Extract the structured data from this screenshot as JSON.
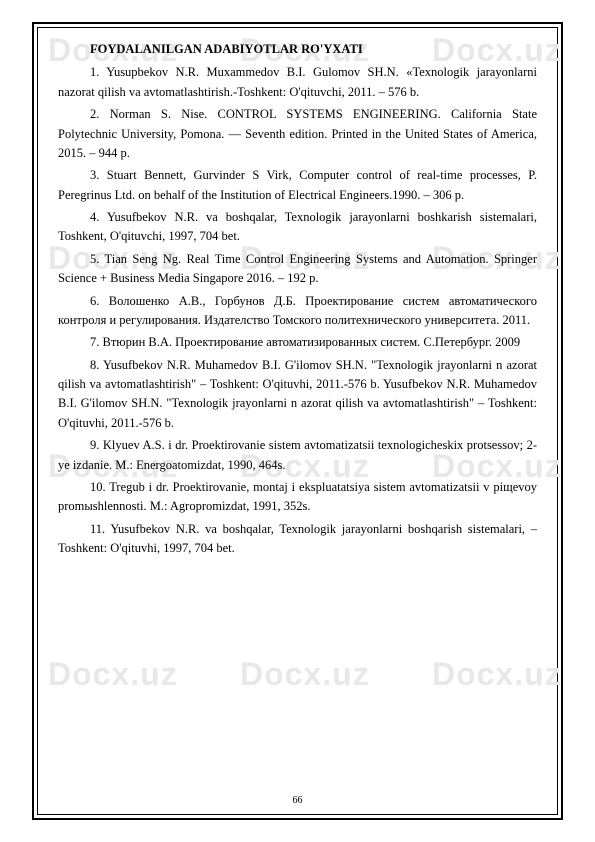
{
  "watermark": "Docx.uz",
  "title": "FOYDALANILGAN ADABIYOTLAR RO'YXATI",
  "references": [
    "1.      Yusupbekov N.R. Muxammedov B.I. Gulomov SH.N. «Texnologik jarayonlarni nazorat qilish va avtomatlashtirish.-Toshkent: O'qituvchi, 2011. – 576 b.",
    "2.      Norman S. Nise. CONTROL SYSTEMS ENGINEERING. California State Polytechnic University, Pomona. — Seventh edition. Printed in the United States of America, 2015. – 944 p.",
    "3.      Stuart Bennett, Gurvinder S Virk, Computer control of real-time processes, P. Peregrinus Ltd. on behalf of the Institution of Electrical Engineers.1990. – 306 p.",
    "4.      Yusufbekov N.R. va boshqalar, Texnologik jarayonlarni boshkarish sistemalari, Toshkent, O'qituvchi, 1997, 704 bet.",
    "5.      Tian Seng Ng. Real Time Control Engineering Systems and Automation. Springer Science + Business Media Singapore 2016. – 192 p.",
    "6.      Волошенко А.В., Горбунов Д.Б. Проектирование систем автоматического контроля и регулирования. Издателство Томского политехнического университета. 2011.",
    "7.      Втюрин В.А. Проектирование автоматизированных систем. С.Петербург. 2009",
    "8.      Yusufbekov N.R. Muhamedov B.I. G'ilomov SH.N. \"Texnologik jrayonlarni n azorat qilish va avtomatlashtirish\" – Toshkent: O'qituvhi, 2011.-576 b. Yusufbekov N.R. Muhamedov B.I. G'ilomov SH.N. \"Texnologik jrayonlarni n azorat qilish va avtomatlashtirish\" – Toshkent: O'qituvhi, 2011.-576 b.",
    "9.      Klyuev   A.S.   i   dr.   Proektirovanie   sistem   avtomatizatsii texnologicheskix protsessov; 2-ye izdanie. M.: Energoatomizdat, 1990, 464s.",
    "10.    Tregub i dr. Proektirovanie, montaj    i    ekspluatatsiya    sistem avtomatizatsii v piщevoy promыshlennosti.   M.:   Agropromizdat, 1991, 352s.",
    "11.    Yusufbekov N.R. va boshqalar,  Texnologik jarayonlarni boshqarish sistemalari, – Toshkent: O'qituvhi, 1997, 704 bet."
  ],
  "page_number": "66"
}
